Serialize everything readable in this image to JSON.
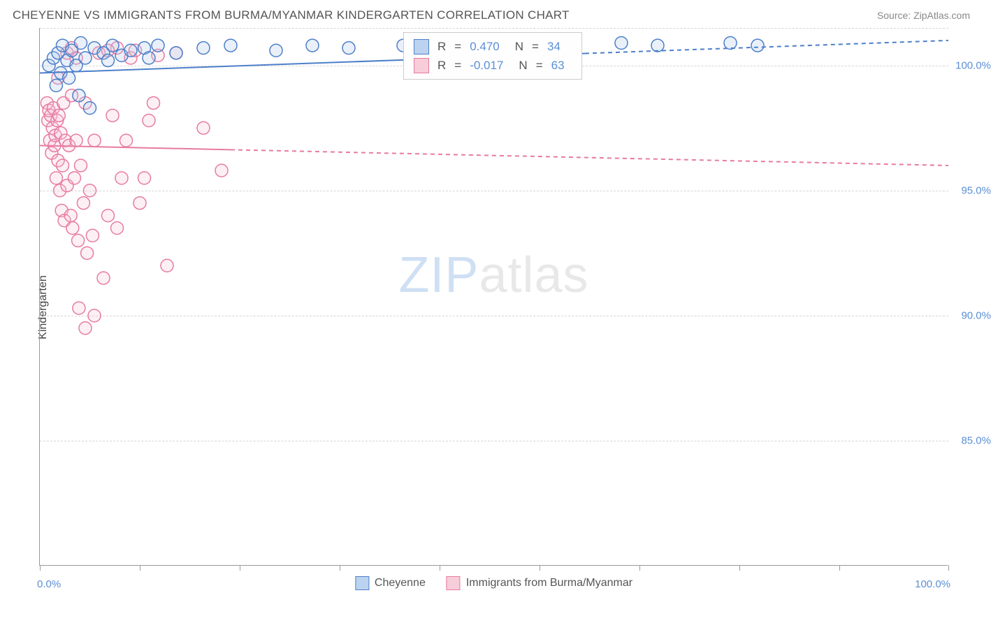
{
  "header": {
    "title": "CHEYENNE VS IMMIGRANTS FROM BURMA/MYANMAR KINDERGARTEN CORRELATION CHART",
    "source": "Source: ZipAtlas.com"
  },
  "chart": {
    "type": "scatter",
    "ylabel": "Kindergarten",
    "background_color": "#ffffff",
    "grid_color": "#d5d5d5",
    "axis_color": "#999999",
    "text_color": "#555555",
    "value_color": "#5b8fd6",
    "xlim": [
      0,
      100
    ],
    "ylim": [
      80,
      101.5
    ],
    "yticks": [
      {
        "v": 85,
        "label": "85.0%"
      },
      {
        "v": 90,
        "label": "90.0%"
      },
      {
        "v": 95,
        "label": "95.0%"
      },
      {
        "v": 100,
        "label": "100.0%"
      },
      {
        "v": 101.5,
        "label": ""
      }
    ],
    "xticks": [
      0,
      11,
      22,
      33,
      44,
      55,
      66,
      77,
      88,
      100
    ],
    "xlabel_min": "0.0%",
    "xlabel_max": "100.0%",
    "watermark_zip": "ZIP",
    "watermark_atlas": "atlas",
    "marker_radius": 9,
    "marker_stroke_width": 1.5,
    "marker_fill_opacity": 0.25,
    "line_width": 2,
    "series": {
      "cheyenne": {
        "label": "Cheyenne",
        "color_stroke": "#4d7fc9",
        "color_fill": "#a8c4e8",
        "swatch_fill": "#bcd3ef",
        "swatch_border": "#4d7fc9",
        "R": "0.470",
        "N": "34",
        "points": [
          [
            1.0,
            100.0
          ],
          [
            1.5,
            100.3
          ],
          [
            1.8,
            99.2
          ],
          [
            2.0,
            100.5
          ],
          [
            2.3,
            99.7
          ],
          [
            2.5,
            100.8
          ],
          [
            3.0,
            100.2
          ],
          [
            3.2,
            99.5
          ],
          [
            3.5,
            100.6
          ],
          [
            4.0,
            100.0
          ],
          [
            4.3,
            98.8
          ],
          [
            4.5,
            100.9
          ],
          [
            5.0,
            100.3
          ],
          [
            5.5,
            98.3
          ],
          [
            6.0,
            100.7
          ],
          [
            7.0,
            100.5
          ],
          [
            7.5,
            100.2
          ],
          [
            8.0,
            100.8
          ],
          [
            9.0,
            100.4
          ],
          [
            10.0,
            100.6
          ],
          [
            11.5,
            100.7
          ],
          [
            12.0,
            100.3
          ],
          [
            13.0,
            100.8
          ],
          [
            15.0,
            100.5
          ],
          [
            18.0,
            100.7
          ],
          [
            21.0,
            100.8
          ],
          [
            26.0,
            100.6
          ],
          [
            30.0,
            100.8
          ],
          [
            34.0,
            100.7
          ],
          [
            40.0,
            100.8
          ],
          [
            64.0,
            100.9
          ],
          [
            68.0,
            100.8
          ],
          [
            76.0,
            100.9
          ],
          [
            79.0,
            100.8
          ]
        ],
        "trend": {
          "x1": 0,
          "y1": 99.7,
          "x2": 100,
          "y2": 101.0,
          "solid_until_x": 60
        }
      },
      "burma": {
        "label": "Immigrants from Burma/Myanmar",
        "color_stroke": "#e77ba1",
        "color_fill": "#f7c4d6",
        "swatch_fill": "#f7cdda",
        "swatch_border": "#e77ba1",
        "R": "-0.017",
        "N": "63",
        "points": [
          [
            0.8,
            98.5
          ],
          [
            0.9,
            97.8
          ],
          [
            1.0,
            98.2
          ],
          [
            1.1,
            97.0
          ],
          [
            1.2,
            98.0
          ],
          [
            1.3,
            96.5
          ],
          [
            1.4,
            97.5
          ],
          [
            1.5,
            98.3
          ],
          [
            1.6,
            96.8
          ],
          [
            1.7,
            97.2
          ],
          [
            1.8,
            95.5
          ],
          [
            1.9,
            97.8
          ],
          [
            2.0,
            96.2
          ],
          [
            2.1,
            98.0
          ],
          [
            2.2,
            95.0
          ],
          [
            2.3,
            97.3
          ],
          [
            2.4,
            94.2
          ],
          [
            2.5,
            96.0
          ],
          [
            2.6,
            98.5
          ],
          [
            2.7,
            93.8
          ],
          [
            2.8,
            97.0
          ],
          [
            3.0,
            95.2
          ],
          [
            3.2,
            96.8
          ],
          [
            3.4,
            94.0
          ],
          [
            3.5,
            98.8
          ],
          [
            3.6,
            93.5
          ],
          [
            3.8,
            95.5
          ],
          [
            4.0,
            97.0
          ],
          [
            4.2,
            93.0
          ],
          [
            4.5,
            96.0
          ],
          [
            4.8,
            94.5
          ],
          [
            5.0,
            98.5
          ],
          [
            5.2,
            92.5
          ],
          [
            5.5,
            95.0
          ],
          [
            5.8,
            93.2
          ],
          [
            6.0,
            97.0
          ],
          [
            6.5,
            100.5
          ],
          [
            7.0,
            91.5
          ],
          [
            7.5,
            94.0
          ],
          [
            8.0,
            98.0
          ],
          [
            8.5,
            100.7
          ],
          [
            9.0,
            95.5
          ],
          [
            10.0,
            100.3
          ],
          [
            10.5,
            100.6
          ],
          [
            11.0,
            94.5
          ],
          [
            12.0,
            97.8
          ],
          [
            12.5,
            98.5
          ],
          [
            13.0,
            100.4
          ],
          [
            14.0,
            92.0
          ],
          [
            15.0,
            100.5
          ],
          [
            4.3,
            90.3
          ],
          [
            5.0,
            89.5
          ],
          [
            3.0,
            100.5
          ],
          [
            3.5,
            100.7
          ],
          [
            4.0,
            100.3
          ],
          [
            7.5,
            100.6
          ],
          [
            2.0,
            99.5
          ],
          [
            8.5,
            93.5
          ],
          [
            6.0,
            90.0
          ],
          [
            9.5,
            97.0
          ],
          [
            11.5,
            95.5
          ],
          [
            18.0,
            97.5
          ],
          [
            20.0,
            95.8
          ]
        ],
        "trend": {
          "x1": 0,
          "y1": 96.8,
          "x2": 100,
          "y2": 96.0,
          "solid_until_x": 21
        }
      }
    },
    "stats_box": {
      "R_label": "R",
      "N_label": "N",
      "equals": "="
    }
  }
}
